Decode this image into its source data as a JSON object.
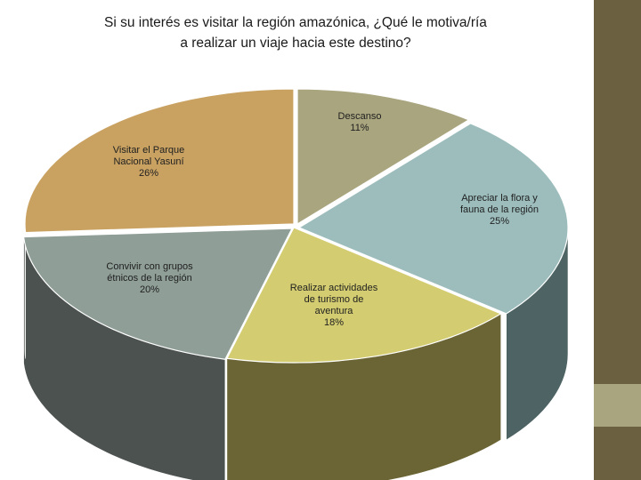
{
  "title": {
    "line1": "Si su interés es visitar la región amazónica, ¿Qué le motiva/ría",
    "line2": "a realizar un viaje hacia este destino?"
  },
  "chart_data": {
    "type": "pie",
    "style": "3d-exploded",
    "title": "Si su interés es visitar la región amazónica, ¿Qué le motiva/ría a realizar un viaje hacia este destino?",
    "slices": [
      {
        "label": [
          "Descanso"
        ],
        "value": 11,
        "display": "11%",
        "top_color": "#a9a57f",
        "side_color": "#7b7857"
      },
      {
        "label": [
          "Apreciar la flora y",
          "fauna de la región"
        ],
        "value": 25,
        "display": "25%",
        "top_color": "#9dbdbd",
        "side_color": "#4e6363"
      },
      {
        "label": [
          "Realizar actividades",
          "de turismo de",
          "aventura"
        ],
        "value": 18,
        "display": "18%",
        "top_color": "#d3cc70",
        "side_color": "#6b6535"
      },
      {
        "label": [
          "Convivir con grupos",
          "étnicos de la región"
        ],
        "value": 20,
        "display": "20%",
        "top_color": "#8f9e97",
        "side_color": "#4c524f"
      },
      {
        "label": [
          "Visitar el Parque",
          "Nacional Yasuní"
        ],
        "value": 26,
        "display": "26%",
        "top_color": "#c9a262",
        "side_color": "#8a6c3c"
      }
    ]
  },
  "sidebar": {
    "colors": [
      "#6b6040",
      "#a9a57f",
      "#6b6040"
    ]
  }
}
